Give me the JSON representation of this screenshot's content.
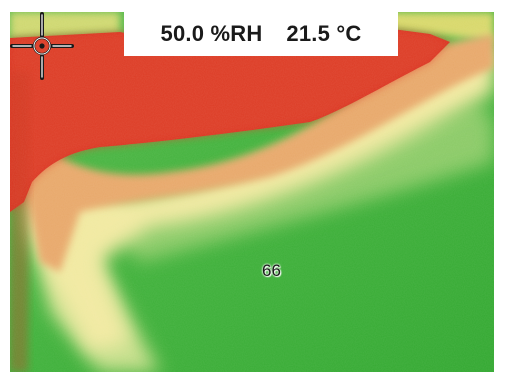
{
  "readout": {
    "humidity": "50.0 %RH",
    "temperature": "21.5 °C"
  },
  "spot": {
    "value": "66"
  },
  "palette": {
    "hot": "#d9301e",
    "warm": "#e8a86a",
    "mid": "#f1e9a0",
    "cool": "#c6df8a",
    "cold": "#3fb13a"
  }
}
